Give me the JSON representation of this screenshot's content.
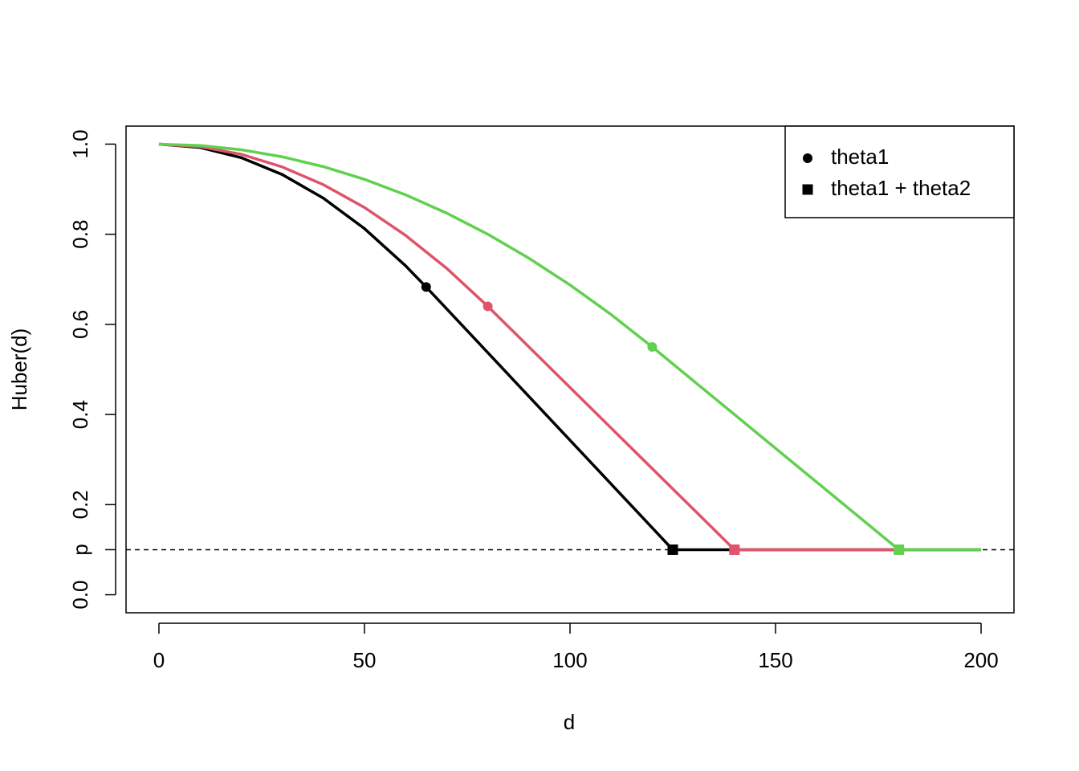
{
  "chart_data": {
    "type": "line",
    "xlabel": "d",
    "ylabel": "Huber(d)",
    "xlim": [
      -8,
      208
    ],
    "ylim": [
      -0.04,
      1.04
    ],
    "xticks": [
      0,
      50,
      100,
      150,
      200
    ],
    "yticks": [
      {
        "value": 0,
        "label": "0.0"
      },
      {
        "value": 0.1,
        "label": "p"
      },
      0.2,
      0.4,
      0.6,
      0.8,
      {
        "value": 1,
        "label": "1.0"
      }
    ],
    "hline": 0.1,
    "legend_position": "top-right",
    "legend": [
      {
        "label": "theta1",
        "shape": "circle"
      },
      {
        "label": "theta1 + theta2",
        "shape": "square"
      }
    ],
    "series": [
      {
        "color": "#000000",
        "x": [
          0,
          10,
          20,
          30,
          40,
          50,
          60,
          65,
          125,
          200
        ],
        "values": [
          1,
          0.9925,
          0.97,
          0.9325,
          0.88,
          0.8125,
          0.73,
          0.683,
          0.1,
          0.1
        ],
        "points": [
          {
            "x": 65,
            "y": 0.683,
            "shape": "circle"
          },
          {
            "x": 125,
            "y": 0.1,
            "shape": "square"
          }
        ]
      },
      {
        "color": "#DF536B",
        "x": [
          0,
          10,
          20,
          30,
          40,
          50,
          60,
          70,
          80,
          140,
          200
        ],
        "values": [
          1,
          0.99438,
          0.9775,
          0.94938,
          0.91,
          0.85938,
          0.7975,
          0.72438,
          0.64,
          0.1,
          0.1
        ],
        "points": [
          {
            "x": 80,
            "y": 0.64,
            "shape": "circle"
          },
          {
            "x": 140,
            "y": 0.1,
            "shape": "square"
          }
        ]
      },
      {
        "color": "#61D04F",
        "x": [
          0,
          10,
          20,
          30,
          40,
          50,
          60,
          70,
          80,
          90,
          100,
          110,
          120,
          180,
          200
        ],
        "values": [
          1,
          0.99688,
          0.9875,
          0.97188,
          0.95,
          0.92188,
          0.8875,
          0.84688,
          0.8,
          0.74688,
          0.6875,
          0.62188,
          0.55,
          0.1,
          0.1
        ],
        "points": [
          {
            "x": 120,
            "y": 0.55,
            "shape": "circle"
          },
          {
            "x": 180,
            "y": 0.1,
            "shape": "square"
          }
        ]
      }
    ]
  }
}
